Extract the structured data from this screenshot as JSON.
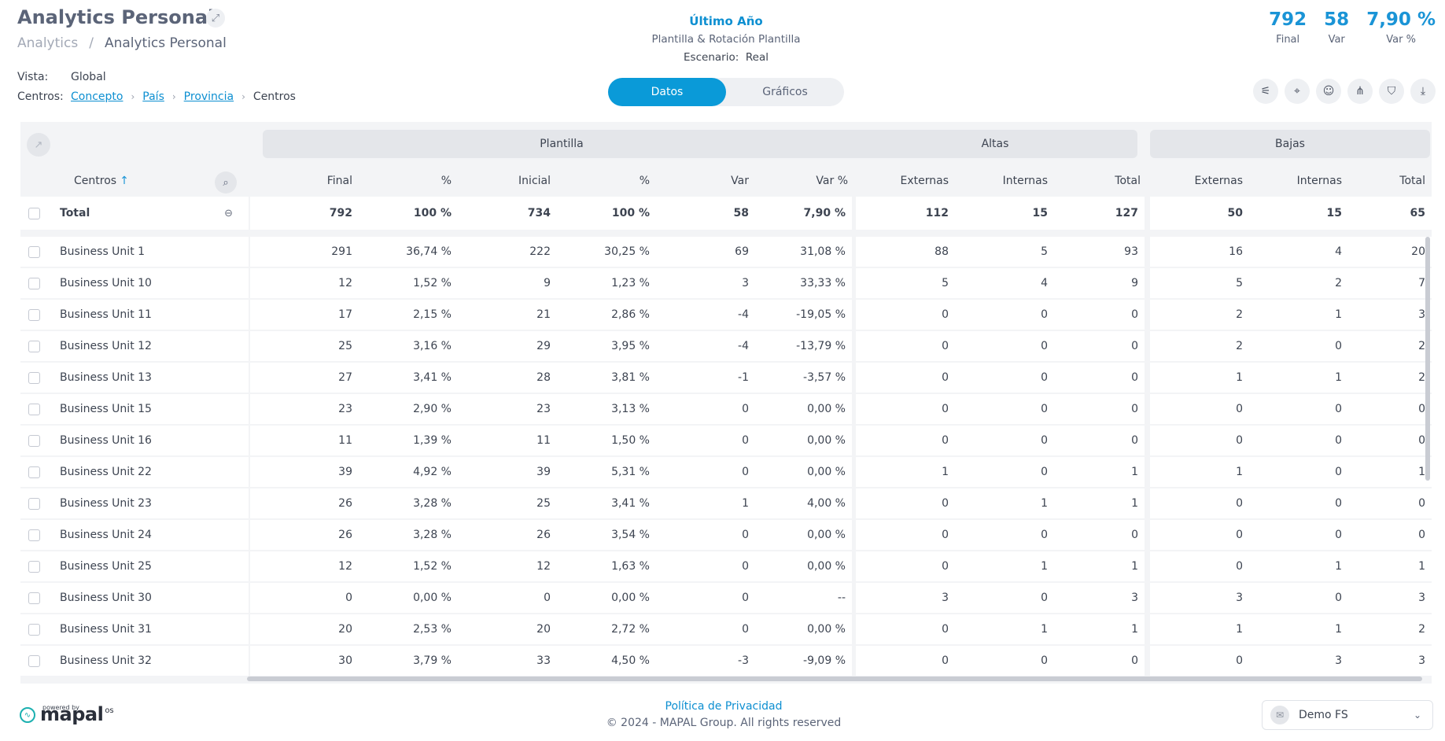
{
  "page": {
    "title": "Analytics Personal",
    "breadcrumb": [
      "Analytics",
      "Analytics Personal"
    ],
    "vista_label": "Vista:",
    "vista_value": "Global",
    "centros_label": "Centros:",
    "centros_path": [
      "Concepto",
      "País",
      "Provincia"
    ],
    "centros_current": "Centros"
  },
  "header": {
    "period": "Último Año",
    "subtitle": "Plantilla & Rotación Plantilla",
    "escenario_label": "Escenario:",
    "escenario_value": "Real"
  },
  "kpis": [
    {
      "value": "792",
      "label": "Final"
    },
    {
      "value": "58",
      "label": "Var"
    },
    {
      "value": "7,90 %",
      "label": "Var %"
    }
  ],
  "toggle": {
    "active": "Datos",
    "inactive": "Gráficos"
  },
  "tools": [
    "sliders-icon",
    "map-pin-icon",
    "user-circle-icon",
    "hierarchy-icon",
    "bookmark-icon",
    "download-icon"
  ],
  "table": {
    "groups": [
      "Plantilla",
      "Altas",
      "Bajas"
    ],
    "name_header": "Centros",
    "columns": [
      "Final",
      "%",
      "Inicial",
      "%",
      "Var",
      "Var %",
      "Externas",
      "Internas",
      "Total",
      "Externas",
      "Internas",
      "Total"
    ],
    "total": {
      "name": "Total",
      "values": [
        "792",
        "100 %",
        "734",
        "100 %",
        "58",
        "7,90 %",
        "112",
        "15",
        "127",
        "50",
        "15",
        "65"
      ]
    },
    "rows": [
      {
        "name": "Business Unit 1",
        "values": [
          "291",
          "36,74 %",
          "222",
          "30,25 %",
          "69",
          "31,08 %",
          "88",
          "5",
          "93",
          "16",
          "4",
          "20"
        ]
      },
      {
        "name": "Business Unit 10",
        "values": [
          "12",
          "1,52 %",
          "9",
          "1,23 %",
          "3",
          "33,33 %",
          "5",
          "4",
          "9",
          "5",
          "2",
          "7"
        ]
      },
      {
        "name": "Business Unit 11",
        "values": [
          "17",
          "2,15 %",
          "21",
          "2,86 %",
          "-4",
          "-19,05 %",
          "0",
          "0",
          "0",
          "2",
          "1",
          "3"
        ]
      },
      {
        "name": "Business Unit 12",
        "values": [
          "25",
          "3,16 %",
          "29",
          "3,95 %",
          "-4",
          "-13,79 %",
          "0",
          "0",
          "0",
          "2",
          "0",
          "2"
        ]
      },
      {
        "name": "Business Unit 13",
        "values": [
          "27",
          "3,41 %",
          "28",
          "3,81 %",
          "-1",
          "-3,57 %",
          "0",
          "0",
          "0",
          "1",
          "1",
          "2"
        ]
      },
      {
        "name": "Business Unit 15",
        "values": [
          "23",
          "2,90 %",
          "23",
          "3,13 %",
          "0",
          "0,00 %",
          "0",
          "0",
          "0",
          "0",
          "0",
          "0"
        ]
      },
      {
        "name": "Business Unit 16",
        "values": [
          "11",
          "1,39 %",
          "11",
          "1,50 %",
          "0",
          "0,00 %",
          "0",
          "0",
          "0",
          "0",
          "0",
          "0"
        ]
      },
      {
        "name": "Business Unit 22",
        "values": [
          "39",
          "4,92 %",
          "39",
          "5,31 %",
          "0",
          "0,00 %",
          "1",
          "0",
          "1",
          "1",
          "0",
          "1"
        ]
      },
      {
        "name": "Business Unit 23",
        "values": [
          "26",
          "3,28 %",
          "25",
          "3,41 %",
          "1",
          "4,00 %",
          "0",
          "1",
          "1",
          "0",
          "0",
          "0"
        ]
      },
      {
        "name": "Business Unit 24",
        "values": [
          "26",
          "3,28 %",
          "26",
          "3,54 %",
          "0",
          "0,00 %",
          "0",
          "0",
          "0",
          "0",
          "0",
          "0"
        ]
      },
      {
        "name": "Business Unit 25",
        "values": [
          "12",
          "1,52 %",
          "12",
          "1,63 %",
          "0",
          "0,00 %",
          "0",
          "1",
          "1",
          "0",
          "1",
          "1"
        ]
      },
      {
        "name": "Business Unit 30",
        "values": [
          "0",
          "0,00 %",
          "0",
          "0,00 %",
          "0",
          "--",
          "3",
          "0",
          "3",
          "3",
          "0",
          "3"
        ]
      },
      {
        "name": "Business Unit 31",
        "values": [
          "20",
          "2,53 %",
          "20",
          "2,72 %",
          "0",
          "0,00 %",
          "0",
          "1",
          "1",
          "1",
          "1",
          "2"
        ]
      },
      {
        "name": "Business Unit 32",
        "values": [
          "30",
          "3,79 %",
          "33",
          "4,50 %",
          "-3",
          "-9,09 %",
          "0",
          "0",
          "0",
          "0",
          "3",
          "3"
        ]
      }
    ]
  },
  "footer": {
    "privacy": "Política de Privacidad",
    "copyright": "© 2024 - MAPAL Group. All rights reserved",
    "powered_by": "powered by",
    "brand": "mapal",
    "brand_suffix": "os",
    "company": "Demo FS"
  },
  "colors": {
    "accent": "#0a9ad8",
    "kpi": "#1a94d6",
    "link": "#0d8fd1",
    "grid_bg": "#f3f4f6"
  }
}
